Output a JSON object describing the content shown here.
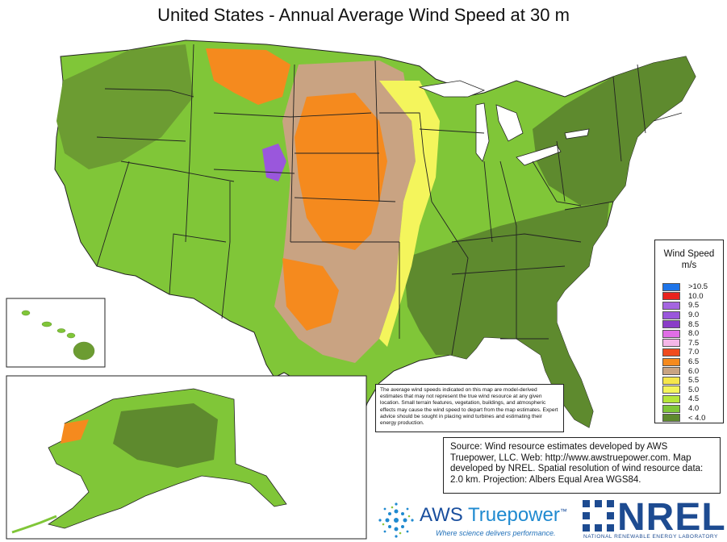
{
  "title": "United States - Annual Average Wind Speed at 30 m",
  "legend": {
    "title": "Wind Speed",
    "unit": "m/s",
    "items": [
      {
        "label": ">10.5",
        "color": "#1e74e8"
      },
      {
        "label": "10.0",
        "color": "#e8231e"
      },
      {
        "label": "9.5",
        "color": "#a466e0"
      },
      {
        "label": "9.0",
        "color": "#9a57dc"
      },
      {
        "label": "8.5",
        "color": "#8a3cc8"
      },
      {
        "label": "8.0",
        "color": "#e06ee6"
      },
      {
        "label": "7.5",
        "color": "#f5b7e8"
      },
      {
        "label": "7.0",
        "color": "#f04b1e"
      },
      {
        "label": "6.5",
        "color": "#f58a1e"
      },
      {
        "label": "6.0",
        "color": "#c9a382"
      },
      {
        "label": "5.5",
        "color": "#f5e64b"
      },
      {
        "label": "5.0",
        "color": "#f4f55c"
      },
      {
        "label": "4.5",
        "color": "#b6e63a"
      },
      {
        "label": "4.0",
        "color": "#80c638"
      },
      {
        "label": "< 4.0",
        "color": "#5e8a2e"
      }
    ]
  },
  "note": "The average wind speeds indicated on this map are model-derived estimates that may not represent the true wind resource at any given location. Small terrain features, vegetation, buildings, and atmospheric effects may cause the wind speed to depart from the map estimates. Expert advice should be sought in placing wind turbines and estimating their energy production.",
  "source": "Source: Wind resource estimates developed by AWS Truepower, LLC. Web: http://www.awstruepower.com. Map developed by NREL. Spatial resolution of wind resource data: 2.0 km. Projection: Albers Equal Area WGS84.",
  "logos": {
    "aws_name_a": "AWS",
    "aws_name_b": "Truepower",
    "aws_tm": "™",
    "aws_tagline": "Where science delivers performance.",
    "nrel": "NREL",
    "nrel_sub": "NATIONAL RENEWABLE ENERGY LABORATORY"
  },
  "colors": {
    "land_low": "#5e8a2e",
    "land_mid": "#80c638",
    "border": "#222222"
  }
}
